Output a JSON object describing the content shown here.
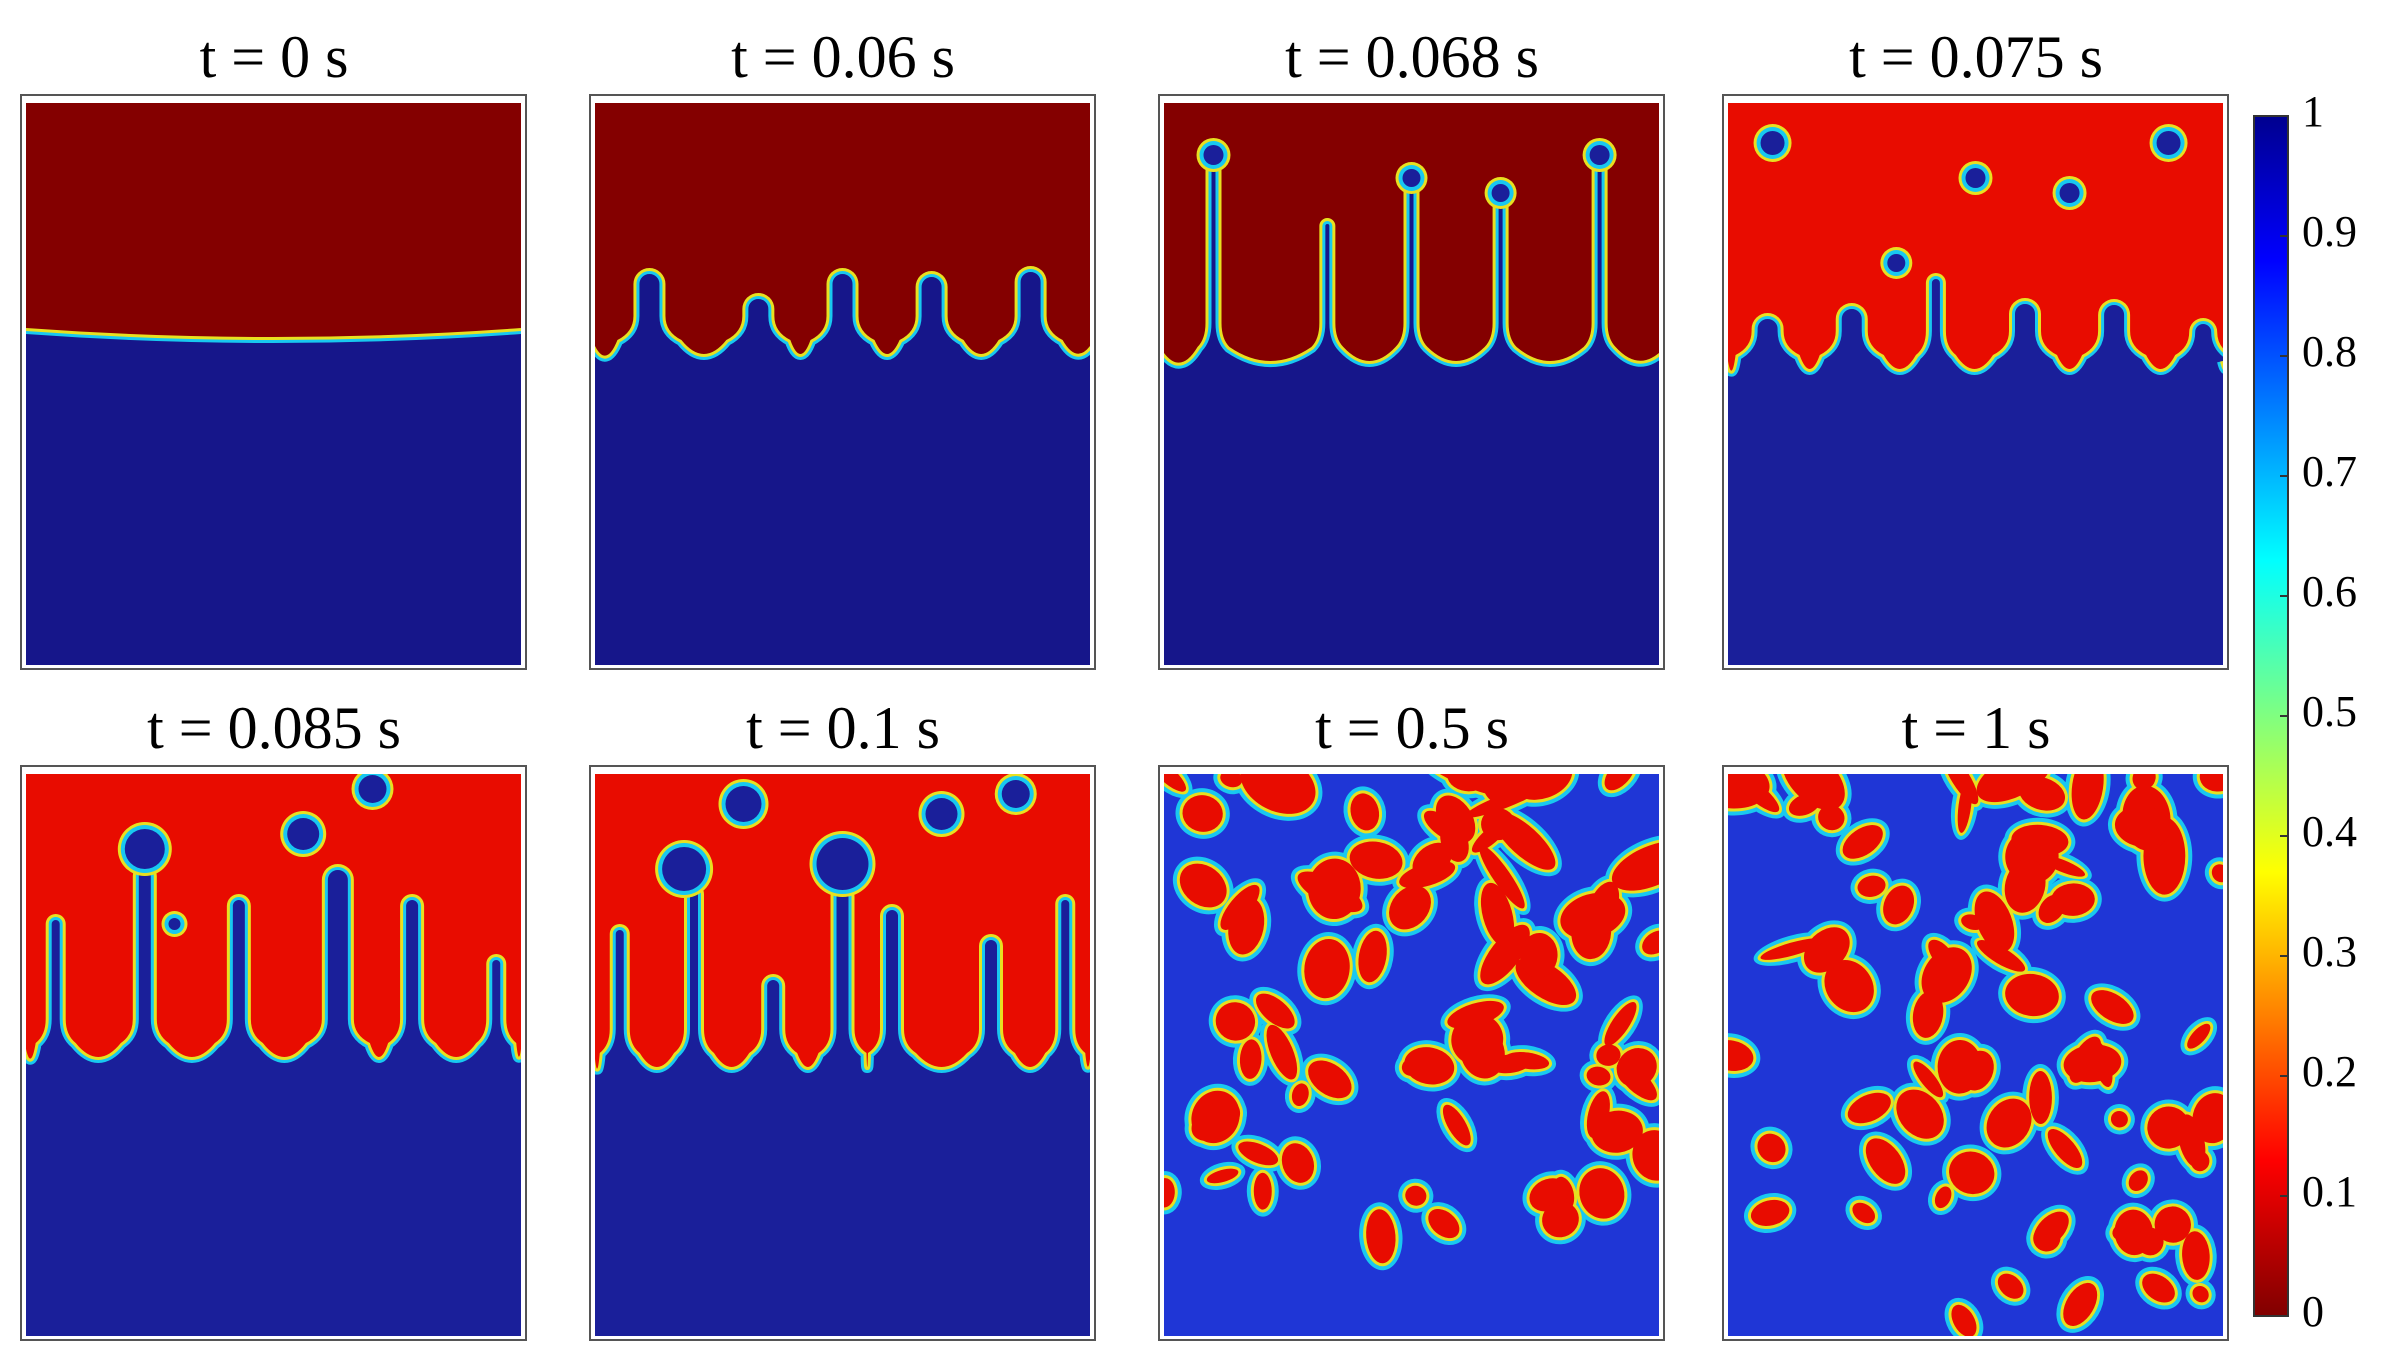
{
  "panels": [
    {
      "title": "t = 0 s"
    },
    {
      "title": "t = 0.06 s"
    },
    {
      "title": "t = 0.068 s"
    },
    {
      "title": "t = 0.075 s"
    },
    {
      "title": "t = 0.085 s"
    },
    {
      "title": "t = 0.1 s"
    },
    {
      "title": "t = 0.5 s"
    },
    {
      "title": "t = 1 s"
    }
  ],
  "colorbar": {
    "ylim": [
      0,
      1
    ],
    "yticks": [
      0,
      0.1,
      0.2,
      0.3,
      0.4,
      0.5,
      0.6,
      0.7,
      0.8,
      0.9,
      1
    ]
  }
}
